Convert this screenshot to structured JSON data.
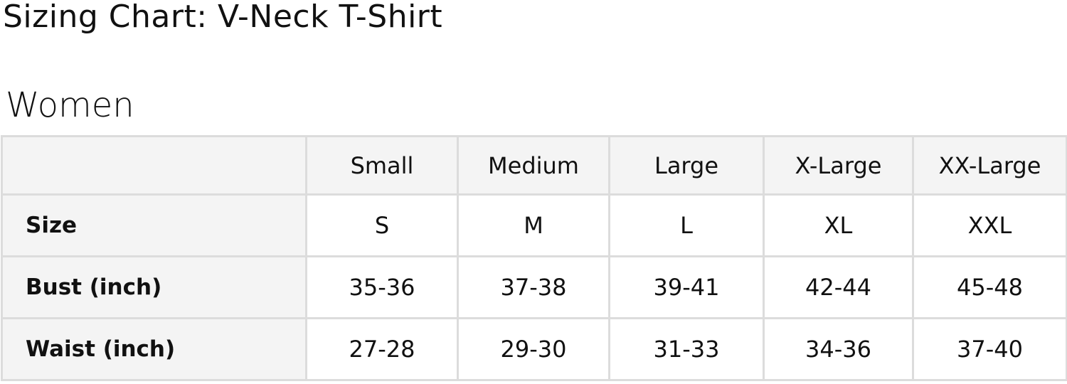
{
  "title": "Sizing Chart: V-Neck T-Shirt",
  "section": "Women",
  "table": {
    "columns": [
      "",
      "Small",
      "Medium",
      "Large",
      "X-Large",
      "XX-Large"
    ],
    "rows": [
      {
        "label": "Size",
        "values": [
          "S",
          "M",
          "L",
          "XL",
          "XXL"
        ]
      },
      {
        "label": "Bust (inch)",
        "values": [
          "35-36",
          "37-38",
          "39-41",
          "42-44",
          "45-48"
        ]
      },
      {
        "label": "Waist (inch)",
        "values": [
          "27-28",
          "29-30",
          "31-33",
          "34-36",
          "37-40"
        ]
      }
    ]
  },
  "colors": {
    "header_bg": "#f4f4f4",
    "border": "#dcdcdc",
    "text": "#111111"
  }
}
